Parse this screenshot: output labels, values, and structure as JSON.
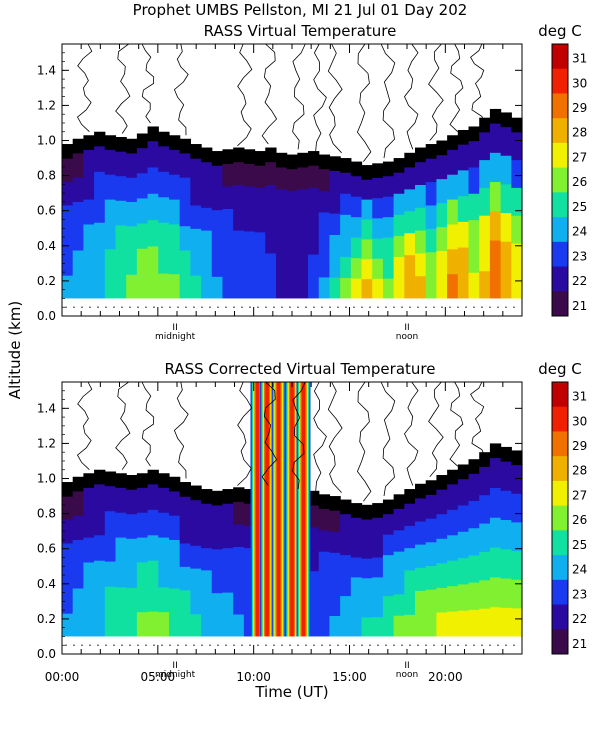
{
  "header": {
    "title_line1": "Prophet  UMBS Pellston, MI  21 Jul 01 Day 202"
  },
  "colors": {
    "palette": [
      "#000000",
      "#3a0a4a",
      "#2a0aa0",
      "#1a3af0",
      "#10b0f0",
      "#10e0a0",
      "#80f030",
      "#f0f000",
      "#f0b000",
      "#f07000",
      "#f02000",
      "#c00000"
    ],
    "contour": "#000000"
  },
  "chart_data": [
    {
      "type": "heatmap",
      "title": "RASS Virtual Temperature",
      "ylabel": "Altitude (km)",
      "xlabel": "",
      "colorbar_label": "deg C",
      "colorbar_ticks": [
        "31",
        "30",
        "29",
        "28",
        "27",
        "26",
        "25",
        "24",
        "23",
        "22",
        "21"
      ],
      "yticks": [
        "0.0",
        "0.2",
        "0.4",
        "0.6",
        "0.8",
        "1.0",
        "1.2",
        "1.4"
      ],
      "ylim": [
        0,
        1.55
      ],
      "xlim": [
        0,
        24
      ],
      "x_annotations": [
        {
          "x": 5.9,
          "mark": "II",
          "label": "midnight"
        },
        {
          "x": 18.0,
          "mark": "II",
          "label": "noon"
        }
      ],
      "top_profile_km": [
        0.9,
        0.93,
        0.95,
        0.97,
        0.95,
        0.94,
        0.93,
        0.96,
        1.0,
        0.97,
        0.95,
        0.93,
        0.9,
        0.88,
        0.86,
        0.87,
        0.88,
        0.87,
        0.86,
        0.88,
        0.85,
        0.84,
        0.85,
        0.86,
        0.84,
        0.83,
        0.82,
        0.8,
        0.78,
        0.79,
        0.8,
        0.82,
        0.85,
        0.88,
        0.9,
        0.92,
        0.95,
        0.98,
        1.0,
        1.05,
        1.1,
        1.08,
        1.05
      ],
      "temperature_cells_degC": [
        [
          24,
          24,
          24.3,
          24.5,
          25,
          25.5,
          26,
          26.4,
          26.8,
          26.5,
          26,
          25.5,
          25,
          24.5,
          24,
          23.5,
          23,
          23.2,
          23.5,
          23,
          22.5,
          22.3,
          22.5,
          23,
          24,
          25,
          26,
          27.5,
          28.5,
          27,
          26,
          27.5,
          28.8,
          28,
          26.5,
          27.5,
          29,
          28.5,
          27,
          28,
          29.5,
          28.6,
          27.5
        ],
        [
          23.8,
          24,
          24.2,
          24.5,
          25,
          25.4,
          25.8,
          26,
          26,
          25.8,
          25.5,
          25,
          24.6,
          24.2,
          23.8,
          23.4,
          23,
          23,
          23.2,
          23,
          22.8,
          22.5,
          22.6,
          23,
          23.8,
          24.5,
          25.3,
          26.5,
          27.5,
          26.5,
          25.8,
          27,
          28,
          27.5,
          26,
          27,
          28.5,
          28,
          26.5,
          27.5,
          29,
          28,
          27
        ],
        [
          23.5,
          23.8,
          24,
          24.3,
          24.6,
          25,
          25.2,
          25.5,
          25.5,
          25.3,
          25,
          24.6,
          24.3,
          24,
          23.6,
          23.2,
          23,
          23,
          23,
          22.8,
          22.6,
          22.4,
          22.5,
          22.8,
          23.4,
          24,
          24.8,
          25.8,
          26.6,
          25.8,
          25.2,
          26.2,
          27.2,
          26.8,
          25.6,
          26.5,
          27.6,
          27.2,
          26,
          27,
          28,
          27.2,
          26.4
        ],
        [
          23,
          23.3,
          23.6,
          23.8,
          24,
          24.2,
          24.4,
          24.5,
          24.5,
          24.3,
          24,
          23.8,
          23.6,
          23.4,
          23.2,
          23,
          22.8,
          22.8,
          22.8,
          22.6,
          22.4,
          22.3,
          22.4,
          22.6,
          23,
          23.4,
          24,
          24.6,
          25.2,
          24.8,
          24.4,
          25,
          25.6,
          25.4,
          24.6,
          25.2,
          26,
          25.6,
          25,
          25.4,
          26,
          25.6,
          25
        ],
        [
          22.4,
          22.6,
          22.8,
          23,
          23.2,
          23.3,
          23.4,
          23.5,
          23.4,
          23.3,
          23.1,
          23,
          22.9,
          22.8,
          22.7,
          22.6,
          22.5,
          22.5,
          22.5,
          22.4,
          22.3,
          22.2,
          22.2,
          22.4,
          22.6,
          22.8,
          23.2,
          23.6,
          24,
          23.8,
          23.6,
          24,
          24.4,
          24.2,
          23.8,
          24,
          24.4,
          24.2,
          23.9,
          24,
          24.4,
          24.2,
          23.8
        ],
        [
          21.8,
          21.9,
          22,
          22.1,
          22.2,
          22.3,
          22.3,
          22.4,
          22.4,
          22.3,
          22.2,
          22.1,
          22.1,
          22,
          22,
          21.9,
          21.9,
          21.9,
          21.9,
          21.8,
          21.8,
          21.7,
          21.7,
          21.8,
          21.9,
          22,
          22.2,
          22.4,
          22.6,
          22.5,
          22.4,
          22.6,
          22.8,
          22.7,
          22.5,
          22.6,
          22.8,
          22.7,
          22.5,
          22.6,
          22.8,
          22.7,
          22.5
        ]
      ]
    },
    {
      "type": "heatmap",
      "title": "RASS Corrected Virtual Temperature",
      "ylabel": "Altitude (km)",
      "xlabel": "Time (UT)",
      "colorbar_label": "deg C",
      "colorbar_ticks": [
        "31",
        "30",
        "29",
        "28",
        "27",
        "26",
        "25",
        "24",
        "23",
        "22",
        "21"
      ],
      "yticks": [
        "0.0",
        "0.2",
        "0.4",
        "0.6",
        "0.8",
        "1.0",
        "1.2",
        "1.4"
      ],
      "xticks": [
        "00:00",
        "05:00",
        "10:00",
        "15:00",
        "20:00"
      ],
      "ylim": [
        0,
        1.55
      ],
      "xlim": [
        0,
        24
      ],
      "x_annotations": [
        {
          "x": 5.9,
          "mark": "II",
          "label": "midnight"
        },
        {
          "x": 18.0,
          "mark": "II",
          "label": "noon"
        }
      ],
      "top_profile_km": [
        0.9,
        0.93,
        0.95,
        0.97,
        0.96,
        0.95,
        0.94,
        0.95,
        0.97,
        0.95,
        0.93,
        0.9,
        0.88,
        0.86,
        0.85,
        0.86,
        0.87,
        0.86,
        0.85,
        0.86,
        0.84,
        0.83,
        0.84,
        0.85,
        0.83,
        0.82,
        0.8,
        0.78,
        0.77,
        0.78,
        0.8,
        0.83,
        0.86,
        0.89,
        0.91,
        0.94,
        0.97,
        1.0,
        1.03,
        1.07,
        1.12,
        1.1,
        1.08
      ],
      "temperature_cells_degC": [
        [
          24,
          24.2,
          24.5,
          24.8,
          25.2,
          25.6,
          25.8,
          26,
          26.2,
          26,
          25.8,
          25.5,
          25.2,
          24.8,
          24.5,
          24.2,
          24,
          23.8,
          23.6,
          23.5,
          23.4,
          23.2,
          23.3,
          23.5,
          23.8,
          24,
          24.3,
          24.6,
          25,
          25.3,
          25.6,
          26,
          26.3,
          26.6,
          26.8,
          27,
          27.2,
          27.3,
          27.4,
          27.5,
          27.5,
          27.4,
          27.3
        ],
        [
          23.8,
          24,
          24.3,
          24.6,
          25,
          25.3,
          25.5,
          25.6,
          25.7,
          25.5,
          25.3,
          25,
          24.8,
          24.5,
          24.2,
          24,
          23.8,
          23.6,
          23.4,
          23.3,
          23.2,
          23.1,
          23.2,
          23.4,
          23.6,
          23.8,
          24,
          24.3,
          24.6,
          24.9,
          25.2,
          25.5,
          25.8,
          26,
          26.2,
          26.4,
          26.5,
          26.6,
          26.7,
          26.7,
          26.7,
          26.6,
          26.5
        ],
        [
          23.5,
          23.7,
          24,
          24.2,
          24.5,
          24.7,
          24.9,
          25,
          25,
          24.9,
          24.7,
          24.5,
          24.3,
          24.1,
          23.9,
          23.7,
          23.5,
          23.4,
          23.3,
          23.2,
          23.1,
          23,
          23.1,
          23.2,
          23.4,
          23.6,
          23.8,
          24,
          24.2,
          24.4,
          24.6,
          24.8,
          25,
          25.2,
          25.4,
          25.5,
          25.6,
          25.7,
          25.7,
          25.7,
          25.7,
          25.6,
          25.5
        ],
        [
          23,
          23.2,
          23.4,
          23.6,
          23.8,
          24,
          24.1,
          24.2,
          24.2,
          24.1,
          24,
          23.8,
          23.7,
          23.5,
          23.4,
          23.2,
          23.1,
          23,
          22.9,
          22.8,
          22.8,
          22.7,
          22.7,
          22.8,
          23,
          23.1,
          23.3,
          23.5,
          23.6,
          23.8,
          24,
          24.1,
          24.3,
          24.4,
          24.5,
          24.6,
          24.7,
          24.7,
          24.7,
          24.7,
          24.7,
          24.6,
          24.5
        ],
        [
          22.4,
          22.5,
          22.7,
          22.8,
          23,
          23.1,
          23.2,
          23.2,
          23.2,
          23.1,
          23,
          22.9,
          22.8,
          22.7,
          22.6,
          22.5,
          22.5,
          22.4,
          22.4,
          22.3,
          22.3,
          22.2,
          22.2,
          22.3,
          22.4,
          22.5,
          22.6,
          22.7,
          22.8,
          22.9,
          23,
          23.1,
          23.2,
          23.3,
          23.3,
          23.4,
          23.4,
          23.5,
          23.5,
          23.5,
          23.5,
          23.4,
          23.4
        ],
        [
          21.8,
          21.9,
          22,
          22.1,
          22.2,
          22.2,
          22.3,
          22.3,
          22.3,
          22.3,
          22.2,
          22.2,
          22.1,
          22.1,
          22,
          22,
          21.9,
          21.9,
          21.9,
          21.8,
          21.8,
          21.8,
          21.8,
          21.8,
          21.9,
          21.9,
          22,
          22,
          22.1,
          22.2,
          22.2,
          22.3,
          22.3,
          22.4,
          22.4,
          22.4,
          22.5,
          22.5,
          22.5,
          22.5,
          22.5,
          22.5,
          22.5
        ]
      ],
      "hot_streaks_ut_hours": [
        10.2,
        10.7,
        11.3,
        12.0,
        12.6
      ]
    }
  ]
}
